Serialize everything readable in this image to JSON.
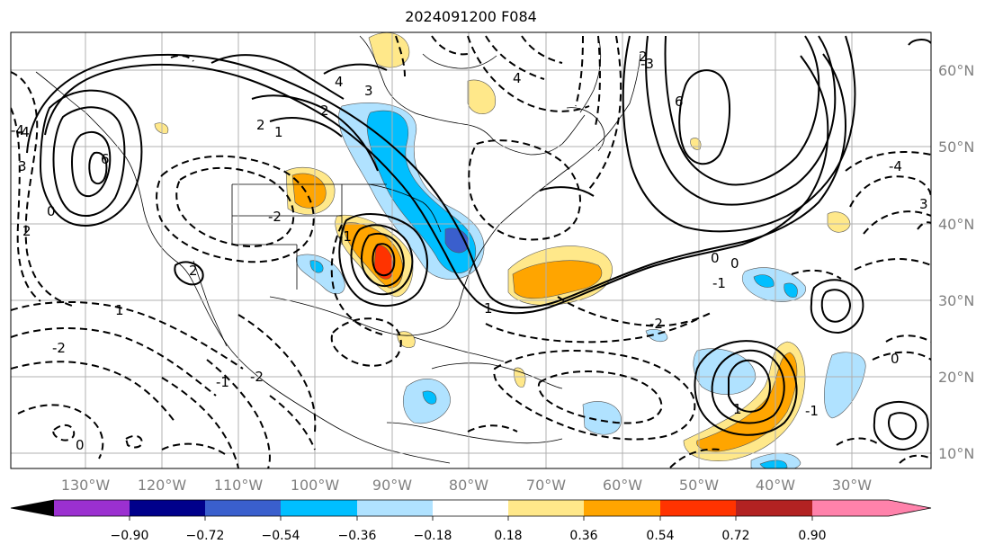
{
  "title": "2024091200 F084",
  "map": {
    "lon_labels": [
      "130°W",
      "120°W",
      "110°W",
      "100°W",
      "90°W",
      "80°W",
      "70°W",
      "60°W",
      "50°W",
      "40°W",
      "30°W"
    ],
    "lat_labels": [
      "60°N",
      "50°N",
      "40°N",
      "30°N",
      "20°N",
      "10°N"
    ],
    "contour_labels": [
      "4",
      "3",
      "2",
      "1",
      "-1",
      "2",
      "-2",
      "1",
      "2",
      "1",
      "4",
      "3",
      "2",
      "6",
      "6",
      "0",
      "-3",
      "-4",
      "-2",
      "0",
      "0",
      "-1",
      "-2",
      "-4",
      "0",
      "-1",
      "1",
      "0",
      "-1",
      "-2",
      "2",
      "3",
      "-4"
    ]
  },
  "colorbar": {
    "ticks": [
      "−0.90",
      "−0.72",
      "−0.54",
      "−0.36",
      "−0.18",
      "0.18",
      "0.36",
      "0.54",
      "0.72",
      "0.90"
    ],
    "colors": [
      "#9b30d0",
      "#00008b",
      "#3a5fcd",
      "#00bfff",
      "#b0e2ff",
      "#ffffff",
      "#ffe88a",
      "#ffa500",
      "#ff3300",
      "#b22222",
      "#ff82ab"
    ]
  }
}
